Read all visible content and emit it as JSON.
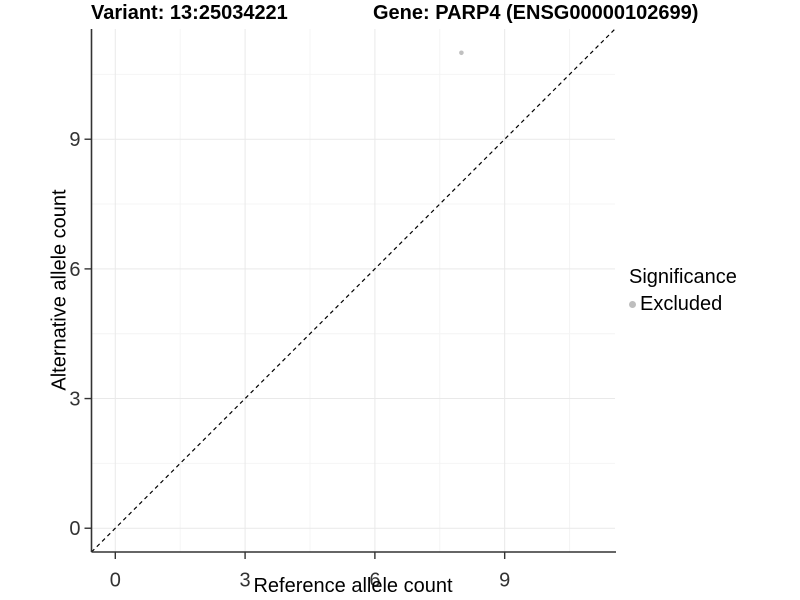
{
  "chart_data": {
    "type": "scatter",
    "title_left": "Variant: 13:25034221",
    "title_right": "Gene: PARP4 (ENSG00000102699)",
    "xlabel": "Reference allele count",
    "ylabel": "Alternative allele count",
    "x_ticks": [
      0,
      3,
      6,
      9
    ],
    "y_ticks": [
      0,
      3,
      6,
      9
    ],
    "x_minor_ticks": [
      1.5,
      4.5,
      7.5,
      10.5
    ],
    "y_minor_ticks": [
      1.5,
      4.5,
      7.5,
      10.5
    ],
    "xlim": [
      -0.55,
      11.55
    ],
    "ylim": [
      -0.55,
      11.55
    ],
    "grid": true,
    "points": [
      {
        "x": 8,
        "y": 11,
        "series": "Excluded"
      }
    ],
    "reference_line": {
      "type": "identity",
      "style": "dashed",
      "from": -0.55,
      "to": 11.55
    },
    "legend": {
      "title": "Significance",
      "position": "right",
      "entries": [
        {
          "label": "Excluded",
          "color": "#bebebe"
        }
      ]
    },
    "colors": {
      "point": "#c0c0c0",
      "axis_line": "#333333",
      "tick_label": "#333333",
      "grid_major": "#e9e9e9",
      "grid_minor": "#f4f4f4",
      "ref_line": "#000000",
      "title": "#000000"
    }
  }
}
